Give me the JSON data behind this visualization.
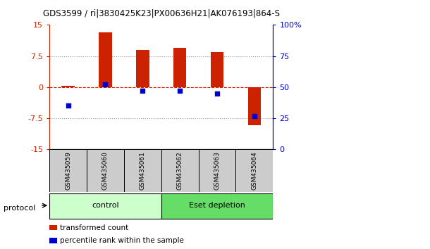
{
  "title": "GDS3599 / ri|3830425K23|PX00636H21|AK076193|864-S",
  "categories": [
    "GSM435059",
    "GSM435060",
    "GSM435061",
    "GSM435062",
    "GSM435063",
    "GSM435064"
  ],
  "red_values": [
    0.4,
    13.2,
    9.0,
    9.5,
    8.5,
    -9.2
  ],
  "blue_pct": [
    35,
    52,
    47,
    47,
    45,
    27
  ],
  "ylim_left": [
    -15,
    15
  ],
  "ylim_right": [
    0,
    100
  ],
  "yticks_left": [
    -15,
    -7.5,
    0,
    7.5,
    15
  ],
  "yticks_right": [
    0,
    25,
    50,
    75,
    100
  ],
  "ytick_labels_left": [
    "-15",
    "-7.5",
    "0",
    "7.5",
    "15"
  ],
  "ytick_labels_right": [
    "0",
    "25",
    "50",
    "75",
    "100%"
  ],
  "hline_dotted": [
    7.5,
    -7.5
  ],
  "hline_dashed": [
    0
  ],
  "group_labels": [
    "control",
    "Eset depletion"
  ],
  "group_col_ranges": [
    [
      0,
      2
    ],
    [
      3,
      5
    ]
  ],
  "group_colors": [
    "#ccffcc",
    "#66dd66"
  ],
  "protocol_label": "protocol",
  "legend_items": [
    "transformed count",
    "percentile rank within the sample"
  ],
  "legend_colors": [
    "#cc2200",
    "#0000cc"
  ],
  "bar_width": 0.35,
  "red_color": "#cc2200",
  "blue_color": "#0000cc",
  "left_axis_color": "#cc2200",
  "right_axis_color": "#0000bb",
  "gsm_bg_color": "#cccccc"
}
